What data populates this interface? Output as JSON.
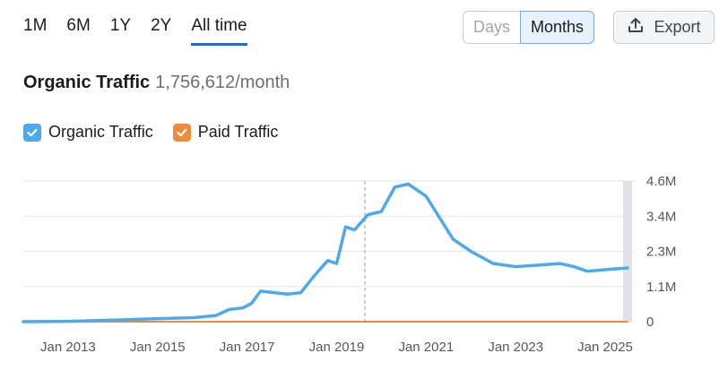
{
  "range_tabs": [
    "1M",
    "6M",
    "1Y",
    "2Y",
    "All time"
  ],
  "active_tab": "All time",
  "granularity": {
    "days_label": "Days",
    "months_label": "Months",
    "selected": "Months"
  },
  "export_label": "Export",
  "summary": {
    "metric": "Organic Traffic",
    "value": "1,756,612/month"
  },
  "legend": [
    {
      "label": "Organic Traffic",
      "color": "#4ea8ec",
      "checked": true
    },
    {
      "label": "Paid Traffic",
      "color": "#f08a3c",
      "checked": true
    }
  ],
  "chart_data": {
    "type": "line",
    "y_tick_labels": [
      "4.6M",
      "3.4M",
      "2.3M",
      "1.1M",
      "0"
    ],
    "ylim": [
      0,
      4600000
    ],
    "x_tick_labels": [
      "Jan 2013",
      "Jan 2015",
      "Jan 2017",
      "Jan 2019",
      "Jan 2021",
      "Jan 2023",
      "Jan 2025"
    ],
    "xlim": [
      2012.0,
      2025.5
    ],
    "grid": true,
    "series": [
      {
        "name": "Organic Traffic",
        "color": "#4ea8ec",
        "x": [
          2012.0,
          2013.0,
          2014.0,
          2015.0,
          2015.8,
          2016.3,
          2016.6,
          2016.9,
          2017.1,
          2017.3,
          2017.6,
          2017.9,
          2018.2,
          2018.5,
          2018.8,
          2019.0,
          2019.2,
          2019.4,
          2019.7,
          2020.0,
          2020.3,
          2020.6,
          2020.8,
          2021.0,
          2021.3,
          2021.6,
          2022.0,
          2022.5,
          2023.0,
          2023.5,
          2024.0,
          2024.3,
          2024.6,
          2025.0,
          2025.5
        ],
        "y": [
          0,
          10000,
          50000,
          100000,
          130000,
          200000,
          400000,
          450000,
          600000,
          1000000,
          950000,
          900000,
          950000,
          1500000,
          2000000,
          1900000,
          3100000,
          3000000,
          3500000,
          3600000,
          4400000,
          4500000,
          4300000,
          4100000,
          3400000,
          2700000,
          2300000,
          1900000,
          1800000,
          1850000,
          1900000,
          1800000,
          1650000,
          1700000,
          1756612
        ]
      },
      {
        "name": "Paid Traffic",
        "color": "#f08a3c",
        "x": [
          2012.0,
          2025.5
        ],
        "y": [
          0,
          0
        ]
      }
    ]
  }
}
